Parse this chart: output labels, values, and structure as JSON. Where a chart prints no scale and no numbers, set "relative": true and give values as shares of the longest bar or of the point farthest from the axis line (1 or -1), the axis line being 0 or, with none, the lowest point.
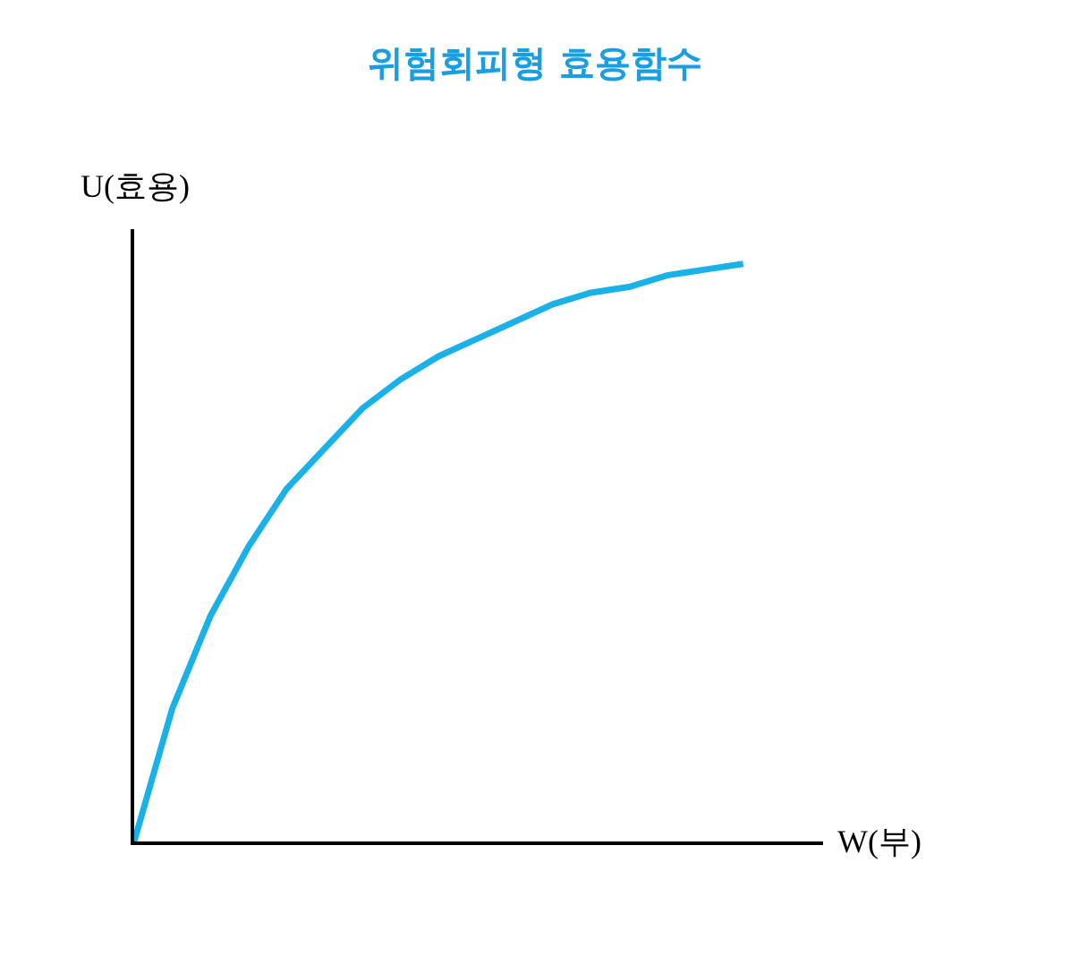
{
  "chart_data": {
    "type": "line",
    "title": "위험회피형 효용함수",
    "xlabel": "W(부)",
    "ylabel": "U(효용)",
    "relative": true,
    "categories": [
      null,
      null,
      null,
      null,
      null,
      null,
      null,
      null,
      null,
      null,
      null,
      null,
      null,
      null,
      null,
      null,
      null
    ],
    "series": [
      {
        "color": "#1ab0e8",
        "values": [
          0,
          0.23,
          0.39,
          0.51,
          0.61,
          0.68,
          0.75,
          0.8,
          0.84,
          0.87,
          0.9,
          0.93,
          0.95,
          0.96,
          0.98,
          0.99,
          1.0
        ]
      }
    ],
    "legend": false,
    "marker": "none",
    "line_style": "solid"
  }
}
